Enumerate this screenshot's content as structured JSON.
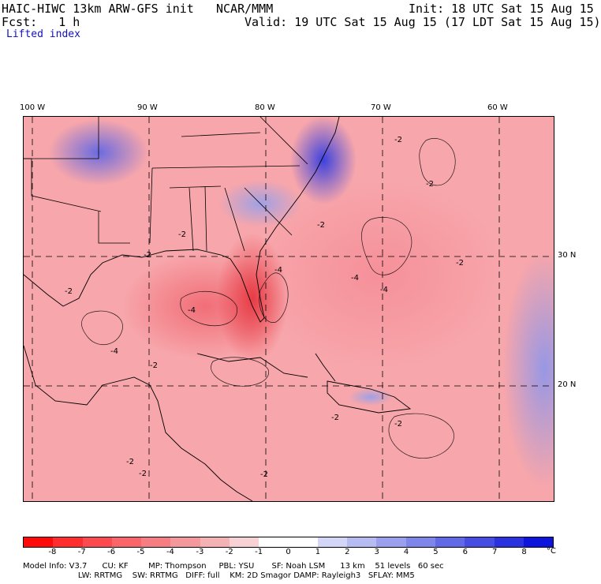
{
  "header": {
    "model_title": "HAIC-HIWC 13km ARW-GFS init",
    "institution": "NCAR/MMM",
    "forecast": "Fcst:   1 h",
    "init": "Init: 18 UTC Sat 15 Aug 15",
    "valid": "Valid: 19 UTC Sat 15 Aug 15 (17 LDT Sat 15 Aug 15)",
    "field": "Lifted index"
  },
  "longitude_labels": [
    "100 W",
    "90 W",
    "80 W",
    "70 W",
    "60 W"
  ],
  "latitude_labels": [
    "30 N",
    "20 N"
  ],
  "contour_labels": [
    "-2",
    "-2",
    "-2",
    "-2",
    "-2",
    "-2",
    "-2",
    "-4",
    "-4",
    "-4",
    "-4",
    "-2",
    "-4",
    "-2",
    "-2",
    "-2",
    "-2",
    "-2"
  ],
  "colorbar": {
    "labels": [
      "-8",
      "-7",
      "-6",
      "-5",
      "-4",
      "-3",
      "-2",
      "-1",
      "0",
      "1",
      "2",
      "3",
      "4",
      "5",
      "6",
      "7",
      "8"
    ],
    "unit": "°C",
    "colors": [
      "#ff0a0a",
      "#ff2d2d",
      "#fc4a4e",
      "#f96569",
      "#f67e83",
      "#f4989c",
      "#f4b2b5",
      "#f7d1d3",
      "#ffffff",
      "#ffffff",
      "#d3d6f7",
      "#b6bbf2",
      "#9aa0ed",
      "#7e86ea",
      "#6169e6",
      "#454de3",
      "#2a32e0",
      "#0d14dc"
    ]
  },
  "model_info": {
    "line1": "Model Info: V3.7      CU: KF        MP: Thompson     PBL: YSU       SF: Noah LSM      13 km    51 levels   60 sec",
    "line2": "                      LW: RRTMG    SW: RRTMG   DIFF: full    KM: 2D Smagor DAMP: Rayleigh3   SFLAY: MM5"
  }
}
